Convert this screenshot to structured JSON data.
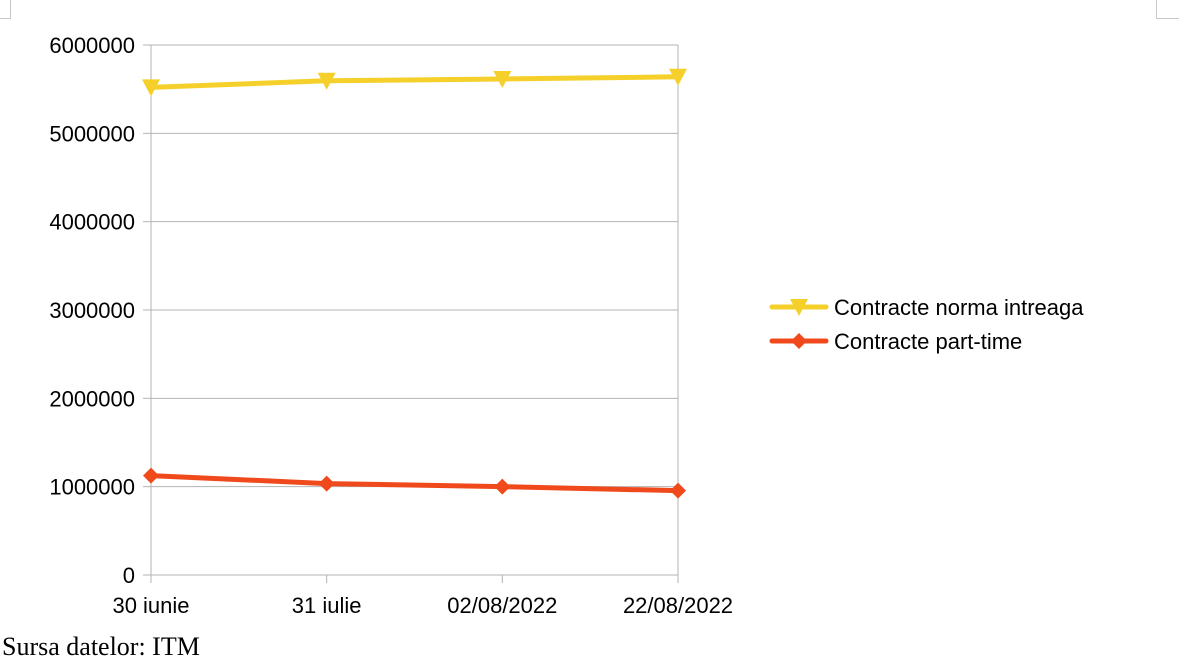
{
  "chart_data": {
    "type": "line",
    "categories": [
      "30 iunie",
      "31 iulie",
      "02/08/2022",
      "22/08/2022"
    ],
    "series": [
      {
        "name": "Contracte norma intreaga",
        "values": [
          5520000,
          5595000,
          5615000,
          5640000
        ],
        "color": "#f5d02a",
        "marker": "triangle-down"
      },
      {
        "name": "Contracte part-time",
        "values": [
          1125000,
          1035000,
          1000000,
          955000
        ],
        "color": "#f04a1c",
        "marker": "diamond"
      }
    ],
    "ylim": [
      0,
      6000000
    ],
    "yticks": [
      0,
      1000000,
      2000000,
      3000000,
      4000000,
      5000000,
      6000000
    ],
    "grid": true,
    "legend_position": "right"
  },
  "source_note": "Sursa datelor: ITM"
}
